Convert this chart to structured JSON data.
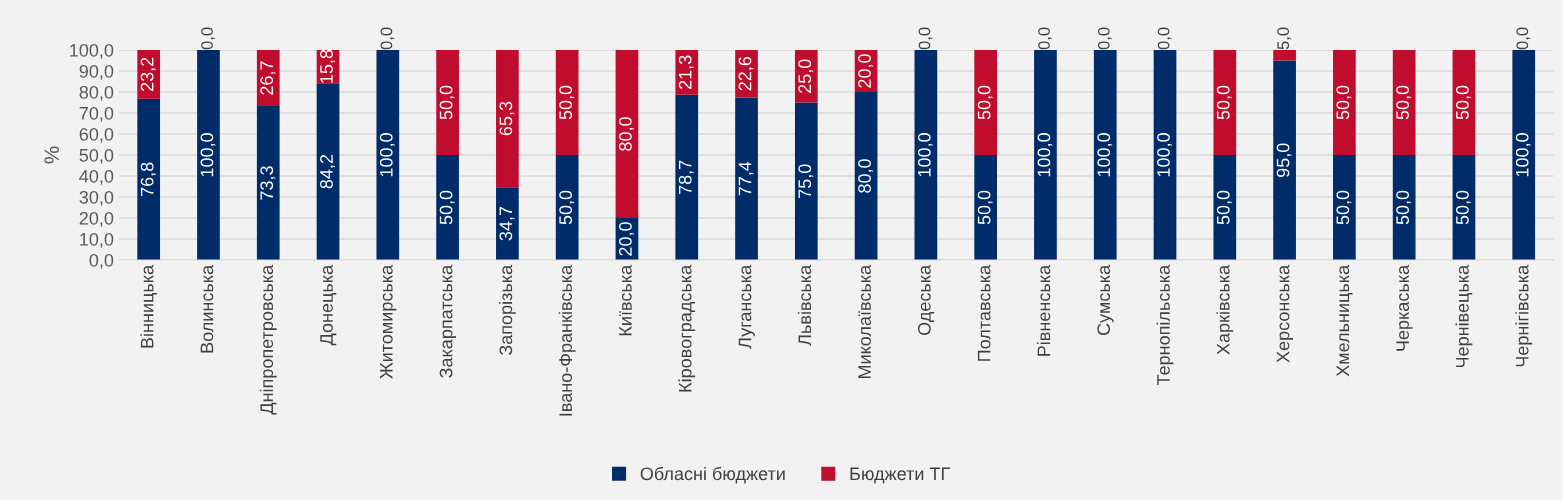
{
  "chart_data": {
    "type": "bar",
    "stacked": true,
    "ylabel": "%",
    "categories": [
      "Вінницька",
      "Волинська",
      "Дніпропетровська",
      "Донецька",
      "Житомирська",
      "Закарпатська",
      "Запорізька",
      "Івано-Франківська",
      "Київська",
      "Кіровоградська",
      "Луганська",
      "Львівська",
      "Миколаївська",
      "Одеська",
      "Полтавська",
      "Рівненська",
      "Сумська",
      "Тернопільська",
      "Харківська",
      "Херсонська",
      "Хмельницька",
      "Черкаська",
      "Чернівецька",
      "Чернігівська"
    ],
    "series": [
      {
        "name": "Обласні бюджети",
        "color": "#002d6a",
        "values": [
          76.8,
          100,
          73.3,
          84.2,
          100,
          50,
          34.7,
          50,
          20,
          78.7,
          77.4,
          75,
          80,
          100,
          50,
          100,
          100,
          100,
          50,
          95,
          50,
          50,
          50,
          100
        ],
        "value_labels": [
          "76,8",
          "100,0",
          "73,3",
          "84,2",
          "100,0",
          "50,0",
          "34,7",
          "50,0",
          "20,0",
          "78,7",
          "77,4",
          "75,0",
          "80,0",
          "100,0",
          "50,0",
          "100,0",
          "100,0",
          "100,0",
          "50,0",
          "95,0",
          "50,0",
          "50,0",
          "50,0",
          "100,0"
        ]
      },
      {
        "name": "Бюджети ТГ",
        "color": "#c00d2e",
        "values": [
          23.2,
          0,
          26.7,
          15.8,
          0,
          50,
          65.3,
          50,
          80,
          21.3,
          22.6,
          25,
          20,
          0,
          50,
          0,
          0,
          0,
          50,
          5,
          50,
          50,
          50,
          0
        ],
        "value_labels": [
          "23,2",
          "0,0",
          "26,7",
          "15,8",
          "0,0",
          "50,0",
          "65,3",
          "50,0",
          "80,0",
          "21,3",
          "22,6",
          "25,0",
          "20,0",
          "0,0",
          "50,0",
          "0,0",
          "0,0",
          "0,0",
          "50,0",
          "5,0",
          "50,0",
          "50,0",
          "50,0",
          "0,0"
        ]
      }
    ],
    "ylim": [
      0,
      100
    ],
    "yticks": [
      {
        "value": 0,
        "label": "0,0"
      },
      {
        "value": 10,
        "label": "10,0"
      },
      {
        "value": 20,
        "label": "20,0"
      },
      {
        "value": 30,
        "label": "30,0"
      },
      {
        "value": 40,
        "label": "40,0"
      },
      {
        "value": 50,
        "label": "50,0"
      },
      {
        "value": 60,
        "label": "60,0"
      },
      {
        "value": 70,
        "label": "70,0"
      },
      {
        "value": 80,
        "label": "80,0"
      },
      {
        "value": 90,
        "label": "90,0"
      },
      {
        "value": 100,
        "label": "100,0"
      }
    ],
    "grid": "y",
    "legend": "bottom"
  }
}
